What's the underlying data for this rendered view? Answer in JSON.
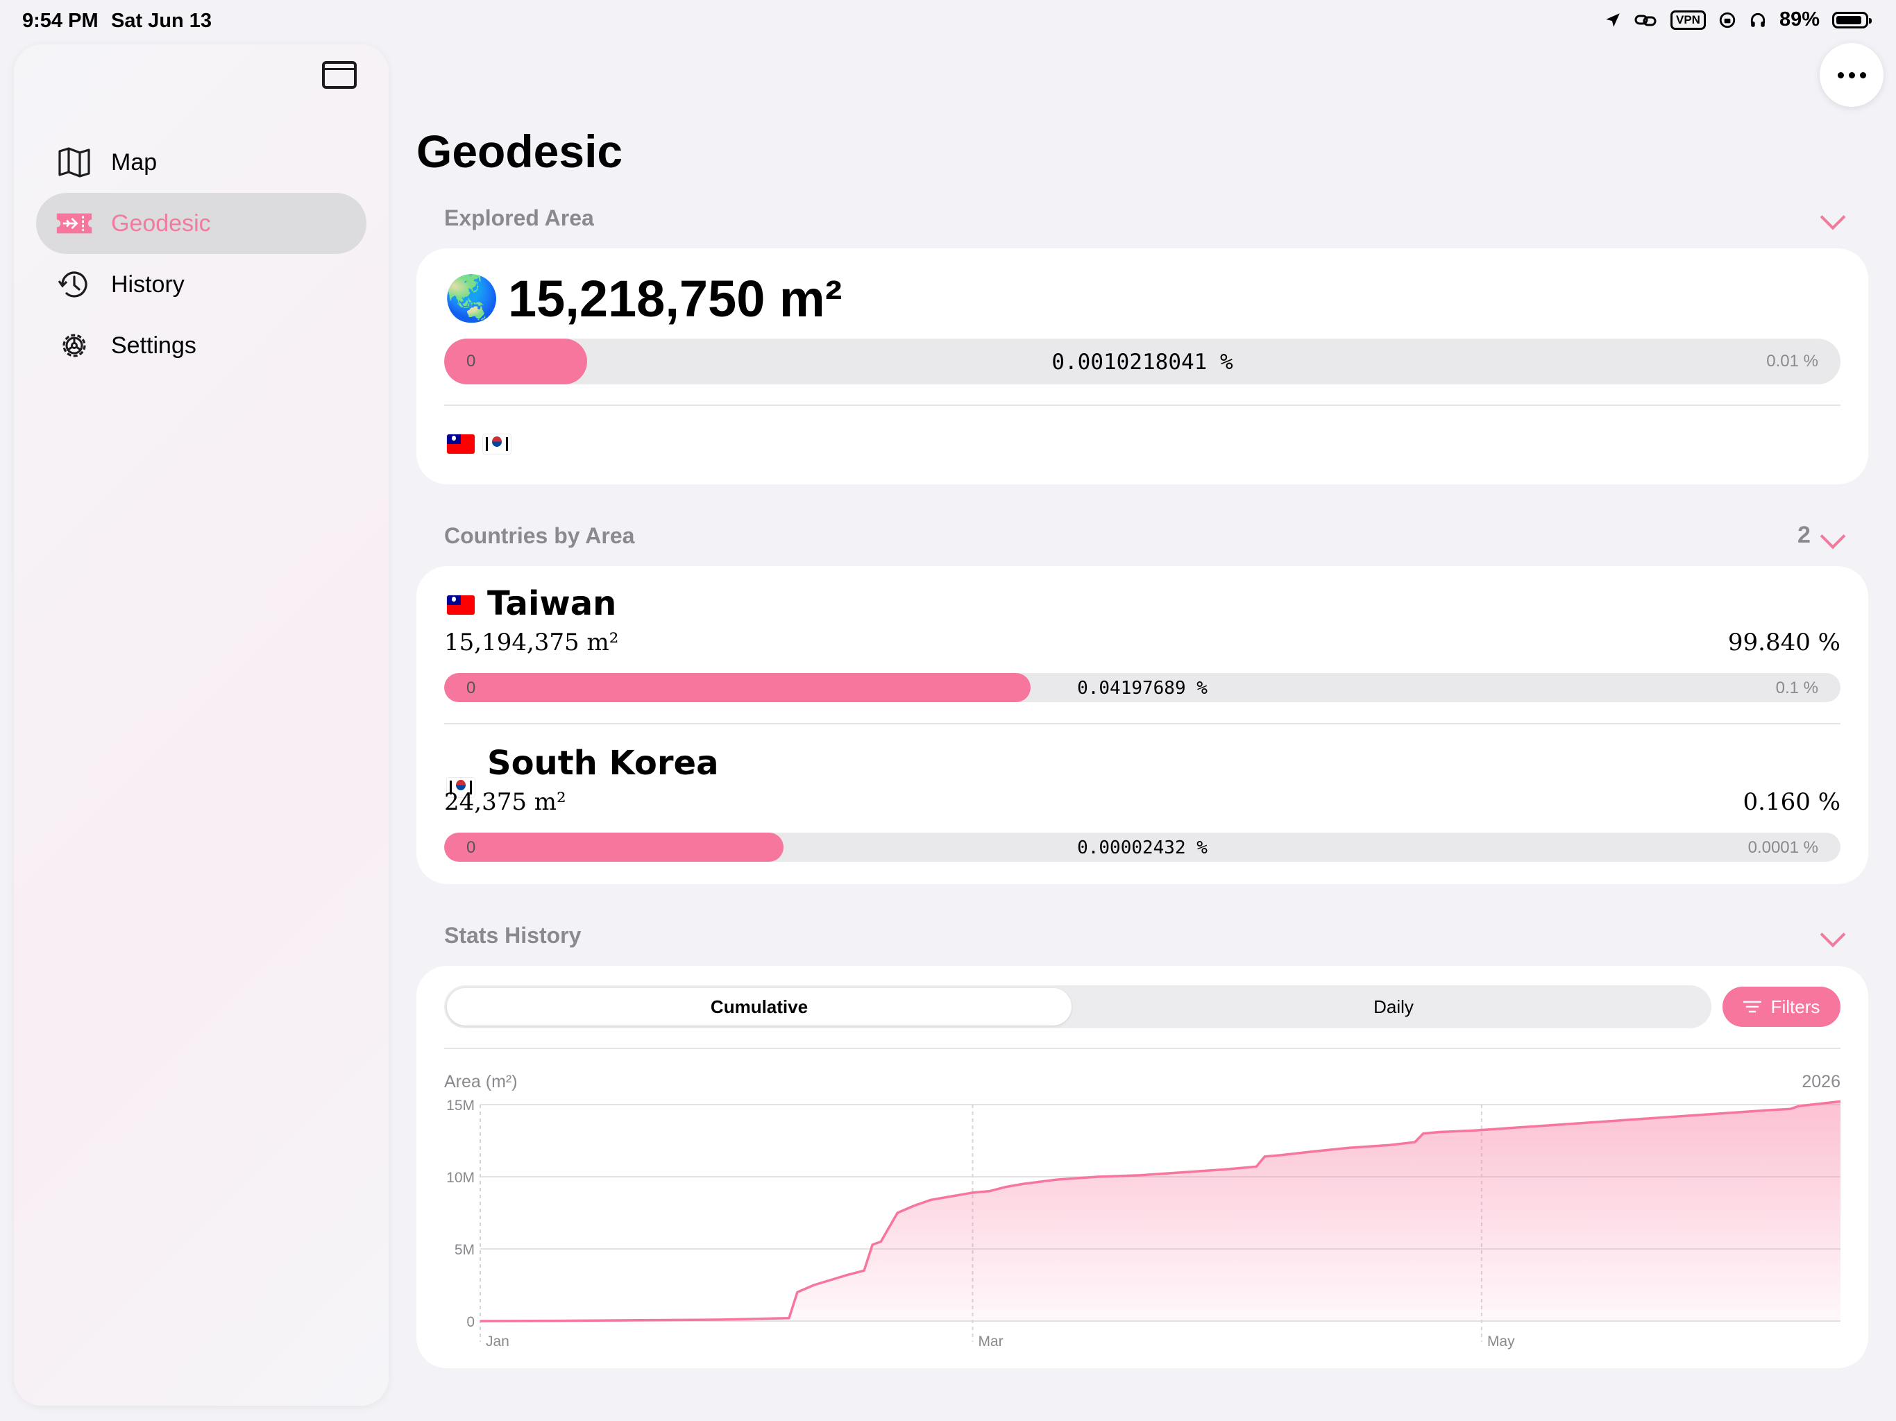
{
  "status_bar": {
    "time": "9:54 PM",
    "date": "Sat Jun 13",
    "vpn": "VPN",
    "battery": "89%",
    "battery_level": 0.89
  },
  "sidebar": {
    "items": [
      {
        "label": "Map",
        "icon": "map-icon"
      },
      {
        "label": "Geodesic",
        "icon": "ticket-plane-icon",
        "active": true
      },
      {
        "label": "History",
        "icon": "history-icon"
      },
      {
        "label": "Settings",
        "icon": "gear-icon"
      }
    ]
  },
  "page": {
    "title": "Geodesic"
  },
  "explored": {
    "heading": "Explored Area",
    "globe": "🌏",
    "total": "15,218,750 m²",
    "bar": {
      "min": "0",
      "value_label": "0.0010218041 %",
      "max": "0.01 %",
      "fill": 0.10218
    },
    "flags": [
      "taiwan-flag",
      "south-korea-flag"
    ]
  },
  "countries": {
    "heading": "Countries by Area",
    "count": "2",
    "items": [
      {
        "name": "Taiwan",
        "flag": "taiwan-flag",
        "area": "15,194,375 m²",
        "share": "99.840 %",
        "bar": {
          "min": "0",
          "value_label": "0.04197689 %",
          "max": "0.1 %",
          "fill": 0.4198
        }
      },
      {
        "name": "South Korea",
        "flag": "south-korea-flag",
        "area": "24,375 m²",
        "share": "0.160 %",
        "bar": {
          "min": "0",
          "value_label": "0.00002432 %",
          "max": "0.0001 %",
          "fill": 0.2432
        }
      }
    ]
  },
  "stats": {
    "heading": "Stats History",
    "tabs": [
      {
        "label": "Cumulative",
        "selected": true
      },
      {
        "label": "Daily",
        "selected": false
      }
    ],
    "filters_label": "Filters"
  },
  "chart_data": {
    "type": "area",
    "ylabel": "Area (m²)",
    "year_label": "2026",
    "y_ticks": [
      "0",
      "5M",
      "10M",
      "15M"
    ],
    "ylim": [
      0,
      15000000
    ],
    "x_ticks": [
      {
        "label": "Jan",
        "day": 1
      },
      {
        "label": "Mar",
        "day": 60
      },
      {
        "label": "May",
        "day": 121
      }
    ],
    "xlim": [
      1,
      164
    ],
    "color": "#f7769d",
    "x": [
      1,
      10,
      20,
      30,
      38,
      39,
      41,
      45,
      47,
      48,
      49,
      51,
      53,
      55,
      57,
      60,
      62,
      64,
      66,
      70,
      75,
      80,
      85,
      90,
      94,
      95,
      97,
      100,
      105,
      110,
      113,
      114,
      116,
      120,
      125,
      130,
      135,
      140,
      145,
      150,
      155,
      158,
      159,
      164
    ],
    "y": [
      0,
      20000,
      60000,
      100000,
      200000,
      2000000,
      2500000,
      3200000,
      3500000,
      5300000,
      5500000,
      7500000,
      8000000,
      8400000,
      8600000,
      8900000,
      9000000,
      9300000,
      9500000,
      9800000,
      10000000,
      10100000,
      10300000,
      10500000,
      10700000,
      11400000,
      11500000,
      11700000,
      12000000,
      12200000,
      12400000,
      13000000,
      13100000,
      13200000,
      13400000,
      13600000,
      13800000,
      14000000,
      14200000,
      14400000,
      14600000,
      14700000,
      14900000,
      15218750
    ]
  }
}
